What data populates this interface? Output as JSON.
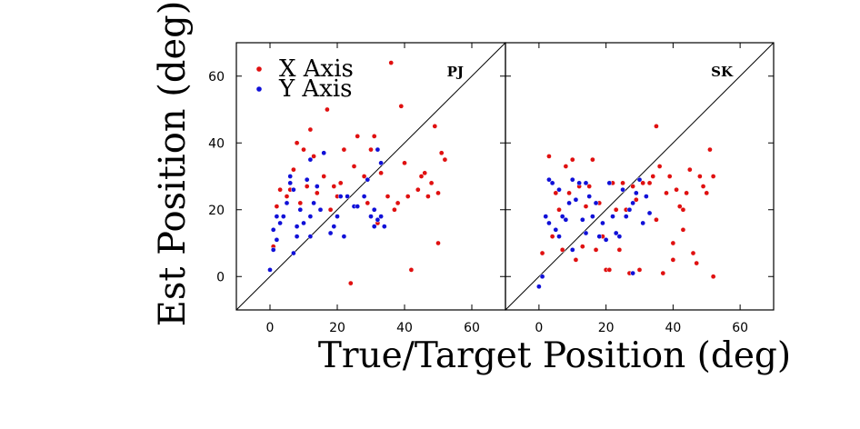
{
  "figure": {
    "ylabel": "Est Position (deg)",
    "xlabel": "True/Target Position (deg)"
  },
  "legend": {
    "items": [
      {
        "label": "X Axis",
        "color": "#e01010"
      },
      {
        "label": "Y Axis",
        "color": "#1010d8"
      }
    ],
    "position": "top-left of left panel"
  },
  "chart_data": [
    {
      "type": "scatter",
      "panel_label": "PJ",
      "xlim": [
        -10,
        70
      ],
      "ylim": [
        -10,
        70
      ],
      "xticks": [
        0,
        20,
        40,
        60
      ],
      "yticks": [
        0,
        20,
        40,
        60
      ],
      "reference_line": "identity (y = x)",
      "series": [
        {
          "name": "X Axis",
          "color": "#e01010",
          "points": [
            [
              1,
              9
            ],
            [
              2,
              21
            ],
            [
              3,
              26
            ],
            [
              5,
              24
            ],
            [
              6,
              26
            ],
            [
              7,
              32
            ],
            [
              8,
              40
            ],
            [
              9,
              22
            ],
            [
              10,
              38
            ],
            [
              11,
              27
            ],
            [
              12,
              44
            ],
            [
              13,
              36
            ],
            [
              14,
              25
            ],
            [
              16,
              30
            ],
            [
              17,
              50
            ],
            [
              18,
              20
            ],
            [
              19,
              27
            ],
            [
              20,
              24
            ],
            [
              21,
              28
            ],
            [
              22,
              38
            ],
            [
              24,
              -2
            ],
            [
              25,
              33
            ],
            [
              26,
              42
            ],
            [
              28,
              30
            ],
            [
              29,
              22
            ],
            [
              30,
              38
            ],
            [
              31,
              42
            ],
            [
              32,
              16
            ],
            [
              33,
              31
            ],
            [
              35,
              24
            ],
            [
              36,
              64
            ],
            [
              37,
              20
            ],
            [
              38,
              22
            ],
            [
              39,
              51
            ],
            [
              40,
              34
            ],
            [
              41,
              24
            ],
            [
              42,
              2
            ],
            [
              44,
              26
            ],
            [
              45,
              30
            ],
            [
              46,
              31
            ],
            [
              47,
              24
            ],
            [
              48,
              28
            ],
            [
              49,
              45
            ],
            [
              50,
              10
            ],
            [
              50,
              25
            ],
            [
              51,
              37
            ],
            [
              52,
              35
            ]
          ]
        },
        {
          "name": "Y Axis",
          "color": "#1010d8",
          "points": [
            [
              0,
              2
            ],
            [
              1,
              8
            ],
            [
              1,
              14
            ],
            [
              2,
              11
            ],
            [
              3,
              16
            ],
            [
              4,
              18
            ],
            [
              5,
              22
            ],
            [
              6,
              28
            ],
            [
              6,
              30
            ],
            [
              7,
              7
            ],
            [
              7,
              26
            ],
            [
              8,
              12
            ],
            [
              9,
              20
            ],
            [
              10,
              16
            ],
            [
              11,
              29
            ],
            [
              12,
              18
            ],
            [
              12,
              35
            ],
            [
              13,
              22
            ],
            [
              14,
              27
            ],
            [
              15,
              20
            ],
            [
              16,
              37
            ],
            [
              18,
              13
            ],
            [
              19,
              15
            ],
            [
              20,
              18
            ],
            [
              21,
              24
            ],
            [
              22,
              12
            ],
            [
              23,
              24
            ],
            [
              25,
              21
            ],
            [
              26,
              21
            ],
            [
              28,
              24
            ],
            [
              29,
              29
            ],
            [
              30,
              18
            ],
            [
              31,
              20
            ],
            [
              31,
              15
            ],
            [
              32,
              17
            ],
            [
              32,
              38
            ],
            [
              33,
              18
            ],
            [
              33,
              34
            ],
            [
              34,
              15
            ],
            [
              12,
              12
            ],
            [
              8,
              15
            ],
            [
              2,
              18
            ]
          ]
        }
      ]
    },
    {
      "type": "scatter",
      "panel_label": "SK",
      "xlim": [
        -10,
        70
      ],
      "ylim": [
        -10,
        70
      ],
      "xticks": [
        0,
        20,
        40,
        60
      ],
      "yticks": [
        0,
        20,
        40,
        60
      ],
      "reference_line": "identity (y = x)",
      "series": [
        {
          "name": "X Axis",
          "color": "#e01010",
          "points": [
            [
              1,
              7
            ],
            [
              2,
              18
            ],
            [
              3,
              36
            ],
            [
              4,
              12
            ],
            [
              5,
              25
            ],
            [
              6,
              20
            ],
            [
              7,
              8
            ],
            [
              8,
              33
            ],
            [
              9,
              25
            ],
            [
              10,
              35
            ],
            [
              11,
              5
            ],
            [
              12,
              27
            ],
            [
              13,
              9
            ],
            [
              14,
              21
            ],
            [
              15,
              27
            ],
            [
              16,
              35
            ],
            [
              17,
              8
            ],
            [
              18,
              22
            ],
            [
              19,
              12
            ],
            [
              20,
              2
            ],
            [
              21,
              2
            ],
            [
              22,
              28
            ],
            [
              23,
              20
            ],
            [
              24,
              8
            ],
            [
              25,
              28
            ],
            [
              26,
              20
            ],
            [
              27,
              1
            ],
            [
              28,
              27
            ],
            [
              29,
              23
            ],
            [
              30,
              2
            ],
            [
              31,
              28
            ],
            [
              32,
              24
            ],
            [
              33,
              28
            ],
            [
              34,
              30
            ],
            [
              35,
              45
            ],
            [
              36,
              33
            ],
            [
              37,
              1
            ],
            [
              38,
              25
            ],
            [
              39,
              30
            ],
            [
              40,
              10
            ],
            [
              41,
              26
            ],
            [
              42,
              21
            ],
            [
              43,
              20
            ],
            [
              44,
              25
            ],
            [
              45,
              32
            ],
            [
              46,
              7
            ],
            [
              47,
              4
            ],
            [
              48,
              30
            ],
            [
              49,
              27
            ],
            [
              50,
              25
            ],
            [
              51,
              38
            ],
            [
              52,
              0
            ],
            [
              52,
              30
            ],
            [
              35,
              17
            ],
            [
              43,
              14
            ],
            [
              40,
              5
            ]
          ]
        },
        {
          "name": "Y Axis",
          "color": "#1010d8",
          "points": [
            [
              0,
              -3
            ],
            [
              1,
              0
            ],
            [
              2,
              18
            ],
            [
              3,
              16
            ],
            [
              3,
              29
            ],
            [
              4,
              28
            ],
            [
              5,
              14
            ],
            [
              6,
              12
            ],
            [
              6,
              26
            ],
            [
              7,
              18
            ],
            [
              8,
              17
            ],
            [
              9,
              22
            ],
            [
              10,
              29
            ],
            [
              11,
              23
            ],
            [
              12,
              28
            ],
            [
              13,
              17
            ],
            [
              14,
              28
            ],
            [
              15,
              24
            ],
            [
              16,
              18
            ],
            [
              17,
              22
            ],
            [
              18,
              12
            ],
            [
              19,
              16
            ],
            [
              20,
              11
            ],
            [
              21,
              28
            ],
            [
              22,
              18
            ],
            [
              23,
              13
            ],
            [
              24,
              12
            ],
            [
              25,
              26
            ],
            [
              26,
              18
            ],
            [
              27,
              20
            ],
            [
              28,
              1
            ],
            [
              28,
              22
            ],
            [
              29,
              25
            ],
            [
              30,
              29
            ],
            [
              31,
              16
            ],
            [
              32,
              24
            ],
            [
              33,
              19
            ],
            [
              10,
              8
            ],
            [
              14,
              13
            ]
          ]
        }
      ]
    }
  ]
}
